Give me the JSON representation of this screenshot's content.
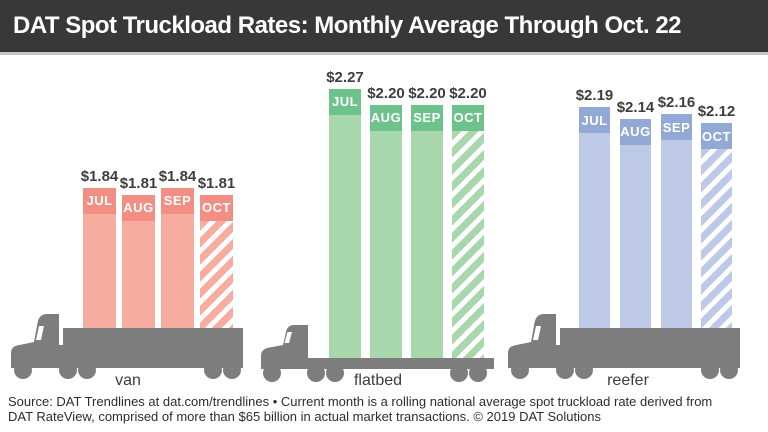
{
  "header": {
    "title": "DAT Spot Truckload Rates: Monthly Average Through Oct. 22"
  },
  "footer": {
    "line1": "Source: DAT Trendlines at dat.com/trendlines • Current month is a rolling national average spot truckload rate derived from",
    "line2": "DAT RateView, comprised of more than $65 billion in actual market transactions. © 2019 DAT Solutions"
  },
  "colors": {
    "header_bg": "#383838",
    "header_text": "#ffffff",
    "divider": "#c3c7c8",
    "truck": "#7d7d7d",
    "value_text": "#3e3e3e",
    "label_text": "#3c3c3c",
    "footer_text": "#2d2d2d",
    "background": "#ffffff"
  },
  "chart_data": {
    "type": "bar",
    "title": "DAT Spot Truckload Rates: Monthly Average Through Oct. 22",
    "months": [
      "JUL",
      "AUG",
      "SEP",
      "OCT"
    ],
    "hatched_month": "OCT",
    "groups": [
      {
        "label": "van",
        "values": [
          1.84,
          1.81,
          1.84,
          1.81
        ],
        "value_labels": [
          "$1.84",
          "$1.81",
          "$1.84",
          "$1.81"
        ],
        "color_chip": "#f28e84",
        "color_body": "#f6ac9f"
      },
      {
        "label": "flatbed",
        "values": [
          2.27,
          2.2,
          2.2,
          2.2
        ],
        "value_labels": [
          "$2.27",
          "$2.20",
          "$2.20",
          "$2.20"
        ],
        "color_chip": "#6ec28b",
        "color_body": "#a8d7ac"
      },
      {
        "label": "reefer",
        "values": [
          2.19,
          2.14,
          2.16,
          2.12
        ],
        "value_labels": [
          "$2.19",
          "$2.14",
          "$2.16",
          "$2.12"
        ],
        "color_chip": "#93a9d5",
        "color_body": "#bdc9e6"
      }
    ]
  }
}
